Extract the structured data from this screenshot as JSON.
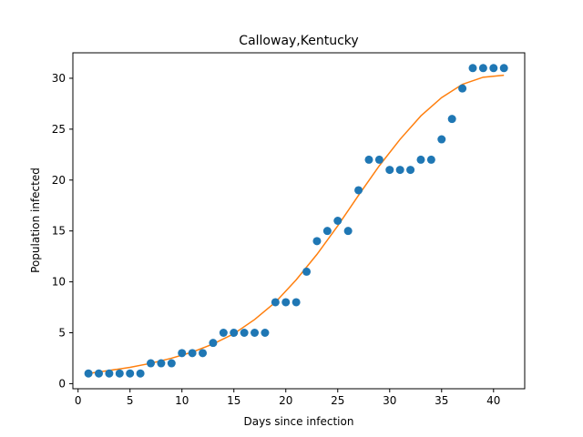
{
  "chart_data": {
    "type": "scatter",
    "title": "Calloway,Kentucky",
    "xlabel": "Days since infection",
    "ylabel": "Population infected",
    "xlim": [
      -0.5,
      43.0
    ],
    "ylim": [
      -0.5,
      32.5
    ],
    "xticks": [
      0,
      5,
      10,
      15,
      20,
      25,
      30,
      35,
      40
    ],
    "yticks": [
      0,
      5,
      10,
      15,
      20,
      25,
      30
    ],
    "grid": false,
    "legend": "none",
    "series": [
      {
        "type": "scatter",
        "color": "#1f77b4",
        "x": [
          1,
          2,
          3,
          4,
          5,
          6,
          7,
          8,
          9,
          10,
          11,
          12,
          13,
          14,
          15,
          16,
          17,
          18,
          19,
          20,
          21,
          22,
          23,
          24,
          25,
          26,
          27,
          28,
          29,
          30,
          31,
          32,
          33,
          34,
          35,
          36,
          37,
          38,
          39,
          40,
          41
        ],
        "y": [
          1,
          1,
          1,
          1,
          1,
          1,
          2,
          2,
          2,
          3,
          3,
          3,
          4,
          5,
          5,
          5,
          5,
          5,
          8,
          8,
          8,
          11,
          14,
          15,
          16,
          15,
          19,
          22,
          22,
          21,
          21,
          21,
          22,
          22,
          24,
          26,
          29,
          31,
          31,
          31,
          31
        ]
      },
      {
        "type": "line",
        "color": "#ff7f0e",
        "x": [
          1,
          3,
          5,
          7,
          9,
          11,
          13,
          15,
          17,
          19,
          21,
          23,
          25,
          27,
          29,
          31,
          33,
          35,
          37,
          39,
          41
        ],
        "y": [
          1.0,
          1.3,
          1.6,
          2.0,
          2.5,
          3.1,
          3.9,
          4.9,
          6.3,
          8.0,
          10.2,
          12.7,
          15.5,
          18.5,
          21.4,
          24.0,
          26.3,
          28.1,
          29.4,
          30.1,
          30.3
        ]
      }
    ]
  }
}
